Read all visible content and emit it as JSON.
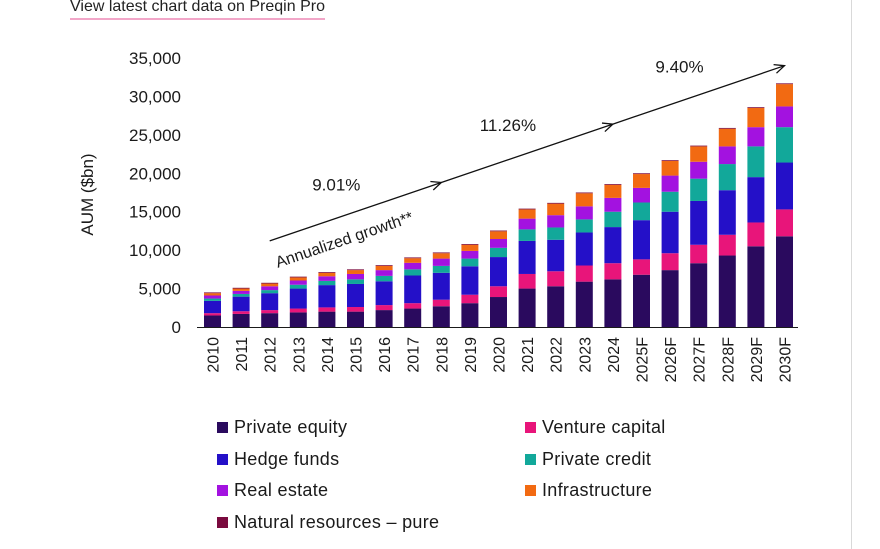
{
  "top_link": {
    "label": "View latest chart data on Preqin Pro"
  },
  "chart_data": {
    "type": "bar",
    "stacked": true,
    "title": "",
    "xlabel": "",
    "ylabel": "AUM ($bn)",
    "ylim": [
      0,
      35000
    ],
    "yticks": [
      0,
      5000,
      10000,
      15000,
      20000,
      25000,
      30000,
      35000
    ],
    "ytick_labels": [
      "0",
      "5,000",
      "10,000",
      "15,000",
      "20,000",
      "25,000",
      "30,000",
      "35,000"
    ],
    "categories": [
      "2010",
      "2011",
      "2012",
      "2013",
      "2014",
      "2015",
      "2016",
      "2017",
      "2018",
      "2019",
      "2020",
      "2021",
      "2022",
      "2023",
      "2024",
      "2025F",
      "2026F",
      "2027F",
      "2028F",
      "2029F",
      "2030F"
    ],
    "series": [
      {
        "name": "Private equity",
        "color": "#2a0a5e",
        "values": [
          1500,
          1700,
          1800,
          1900,
          2000,
          2000,
          2200,
          2400,
          2700,
          3100,
          3900,
          5000,
          5300,
          5900,
          6200,
          6800,
          7400,
          8300,
          9300,
          10500,
          11800
        ]
      },
      {
        "name": "Venture capital",
        "color": "#e8157a",
        "values": [
          300,
          350,
          400,
          500,
          550,
          600,
          650,
          700,
          850,
          1100,
          1400,
          1900,
          1950,
          2100,
          2100,
          2000,
          2200,
          2400,
          2700,
          3100,
          3500
        ]
      },
      {
        "name": "Hedge funds",
        "color": "#2410c8",
        "values": [
          1600,
          1900,
          2200,
          2600,
          2900,
          3000,
          3100,
          3600,
          3500,
          3700,
          3800,
          4300,
          4100,
          4300,
          4700,
          5100,
          5400,
          5700,
          5800,
          5900,
          6100
        ]
      },
      {
        "name": "Private credit",
        "color": "#12a89a",
        "values": [
          300,
          350,
          400,
          500,
          550,
          600,
          700,
          800,
          900,
          1000,
          1200,
          1500,
          1600,
          1700,
          2000,
          2300,
          2600,
          2900,
          3400,
          4000,
          4600
        ]
      },
      {
        "name": "Real estate",
        "color": "#a312e0",
        "values": [
          400,
          400,
          500,
          550,
          600,
          700,
          750,
          850,
          950,
          1000,
          1150,
          1400,
          1600,
          1700,
          1800,
          1900,
          2100,
          2200,
          2300,
          2500,
          2700
        ]
      },
      {
        "name": "Infrastructure",
        "color": "#f26a12",
        "values": [
          300,
          300,
          350,
          400,
          450,
          500,
          550,
          600,
          700,
          800,
          1000,
          1200,
          1500,
          1700,
          1700,
          1800,
          1900,
          2000,
          2300,
          2500,
          2900
        ]
      },
      {
        "name": "Natural resources – pure",
        "color": "#7a0a3e",
        "values": [
          100,
          100,
          100,
          100,
          100,
          100,
          100,
          100,
          100,
          100,
          100,
          100,
          100,
          100,
          100,
          100,
          100,
          100,
          100,
          100,
          100
        ]
      }
    ],
    "annotations": [
      {
        "text": "9.01%",
        "from_category": "2012",
        "to_category": "2018",
        "from_value": 11200,
        "to_value": 18800
      },
      {
        "text": "11.26%",
        "from_category": "2018",
        "to_category": "2024",
        "from_value": 18800,
        "to_value": 26400
      },
      {
        "text": "9.40%",
        "from_category": "2024",
        "to_category": "2030F",
        "from_value": 26400,
        "to_value": 34000
      }
    ],
    "growth_label": "Annualized growth**",
    "legend_position": "bottom"
  },
  "legend": [
    {
      "label": "Private equity",
      "color": "#2a0a5e"
    },
    {
      "label": "Venture capital",
      "color": "#e8157a"
    },
    {
      "label": "Hedge funds",
      "color": "#2410c8"
    },
    {
      "label": "Private credit",
      "color": "#12a89a"
    },
    {
      "label": "Real estate",
      "color": "#a312e0"
    },
    {
      "label": "Infrastructure",
      "color": "#f26a12"
    },
    {
      "label": "Natural resources – pure",
      "color": "#7a0a3e"
    }
  ]
}
